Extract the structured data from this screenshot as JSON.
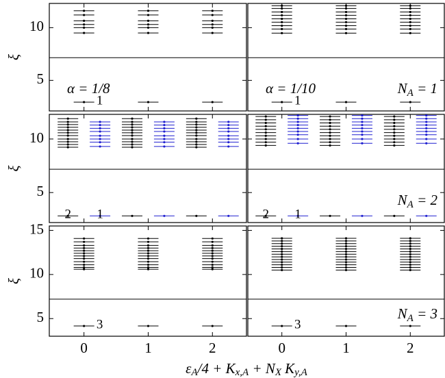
{
  "ylabel": "ξ",
  "xlabel": [
    {
      "t": "ε",
      "s": "A"
    },
    {
      "t": "/4 + K",
      "s": "x,A"
    },
    {
      "t": " + N",
      "s": "X"
    },
    {
      "t": "K",
      "s": "y,A"
    }
  ],
  "chart_data": [
    {
      "type": "spectrum",
      "label": "α = 1/8",
      "xlim": [
        -0.54,
        2.53
      ],
      "xticks": [
        0,
        1,
        2
      ],
      "ylim": [
        2.1,
        12.3
      ],
      "yticks": [
        5,
        10
      ],
      "cut": 7.15,
      "columns": [
        {
          "x": 0,
          "color": "#000000",
          "count": "1",
          "levels": [
            2.94,
            9.5,
            10.0,
            10.3,
            10.65,
            11.2,
            11.6
          ]
        },
        {
          "x": 1,
          "color": "#000000",
          "levels": [
            2.94,
            9.5,
            10.0,
            10.3,
            10.65,
            11.2,
            11.6
          ]
        },
        {
          "x": 2,
          "color": "#000000",
          "levels": [
            2.94,
            9.5,
            10.0,
            10.3,
            10.65,
            11.2,
            11.6
          ]
        }
      ]
    },
    {
      "type": "spectrum",
      "label": "α = 1/10",
      "na": {
        "base": "N",
        "sub": "A",
        "rest": " = 1"
      },
      "xlim": [
        -0.53,
        2.53
      ],
      "xticks": [
        0,
        1,
        2
      ],
      "ylim": [
        2.1,
        12.3
      ],
      "yticks": [
        5,
        10
      ],
      "cut": 7.15,
      "columns": [
        {
          "x": 0,
          "color": "#000000",
          "count": "1",
          "levels": [
            2.94,
            9.48,
            9.87,
            10.19,
            10.52,
            10.84,
            11.17,
            11.49,
            11.82,
            12.08
          ]
        },
        {
          "x": 1,
          "color": "#000000",
          "levels": [
            2.94,
            9.48,
            9.87,
            10.19,
            10.52,
            10.84,
            11.17,
            11.49,
            11.82,
            12.08
          ]
        },
        {
          "x": 2,
          "color": "#000000",
          "levels": [
            2.94,
            9.48,
            9.87,
            10.19,
            10.52,
            10.84,
            11.17,
            11.49,
            11.82,
            12.08
          ]
        }
      ]
    },
    {
      "type": "spectrum",
      "xlim": [
        -0.54,
        2.53
      ],
      "xticks": [
        0,
        1,
        2
      ],
      "ylim": [
        2.2,
        12.3
      ],
      "yticks": [
        5,
        10
      ],
      "cut": 7.18,
      "columns": [
        {
          "x": -0.25,
          "color": "#000000",
          "count": "2",
          "levels": [
            2.82,
            9.23,
            9.49,
            9.74,
            10.0,
            10.32,
            10.58,
            10.83,
            11.09,
            11.35,
            11.6,
            11.9
          ]
        },
        {
          "x": 0.25,
          "color": "#1f1fd0",
          "count": "1",
          "levels": [
            2.82,
            9.3,
            9.7,
            10.0,
            10.3,
            10.7,
            11.0,
            11.3,
            11.6
          ]
        },
        {
          "x": 0.75,
          "color": "#000000",
          "levels": [
            2.82,
            9.23,
            9.49,
            9.74,
            10.0,
            10.32,
            10.58,
            10.83,
            11.09,
            11.35,
            11.6,
            11.9
          ]
        },
        {
          "x": 1.25,
          "color": "#1f1fd0",
          "levels": [
            2.82,
            9.3,
            9.7,
            10.0,
            10.3,
            10.7,
            11.0,
            11.3,
            11.6
          ]
        },
        {
          "x": 1.75,
          "color": "#000000",
          "levels": [
            2.82,
            9.23,
            9.49,
            9.74,
            10.0,
            10.32,
            10.58,
            10.83,
            11.09,
            11.35,
            11.6,
            11.9
          ]
        },
        {
          "x": 2.25,
          "color": "#1f1fd0",
          "levels": [
            2.82,
            9.3,
            9.7,
            10.0,
            10.3,
            10.7,
            11.0,
            11.3,
            11.6
          ]
        }
      ]
    },
    {
      "type": "spectrum",
      "na": {
        "base": "N",
        "sub": "A",
        "rest": " = 2"
      },
      "xlim": [
        -0.53,
        2.53
      ],
      "xticks": [
        0,
        1,
        2
      ],
      "ylim": [
        2.2,
        12.3
      ],
      "yticks": [
        5,
        10
      ],
      "cut": 7.18,
      "columns": [
        {
          "x": -0.25,
          "color": "#000000",
          "count": "2",
          "levels": [
            2.82,
            9.4,
            9.7,
            10.0,
            10.3,
            10.6,
            10.9,
            11.2,
            11.5,
            11.8,
            12.1
          ]
        },
        {
          "x": 0.25,
          "color": "#1f1fd0",
          "count": "1",
          "levels": [
            2.82,
            9.6,
            10.0,
            10.4,
            10.7,
            11.0,
            11.3,
            11.6,
            11.9,
            12.2
          ]
        },
        {
          "x": 0.75,
          "color": "#000000",
          "levels": [
            2.82,
            9.4,
            9.7,
            10.0,
            10.3,
            10.6,
            10.9,
            11.2,
            11.5,
            11.8,
            12.1
          ]
        },
        {
          "x": 1.25,
          "color": "#1f1fd0",
          "levels": [
            2.82,
            9.6,
            10.0,
            10.4,
            10.7,
            11.0,
            11.3,
            11.6,
            11.9,
            12.2
          ]
        },
        {
          "x": 1.75,
          "color": "#000000",
          "levels": [
            2.82,
            9.4,
            9.7,
            10.0,
            10.3,
            10.6,
            10.9,
            11.2,
            11.5,
            11.8,
            12.1
          ]
        },
        {
          "x": 2.25,
          "color": "#1f1fd0",
          "levels": [
            2.82,
            9.6,
            10.0,
            10.4,
            10.7,
            11.0,
            11.3,
            11.6,
            11.9,
            12.2
          ]
        }
      ]
    },
    {
      "type": "spectrum",
      "xlim": [
        -0.54,
        2.53
      ],
      "xticks": [
        0,
        1,
        2
      ],
      "ylim": [
        3,
        15.5
      ],
      "yticks": [
        5,
        10,
        15
      ],
      "cut": 7.2,
      "columns": [
        {
          "x": 0,
          "color": "#000000",
          "count": "3",
          "levels": [
            4.16,
            10.6,
            10.8,
            11.1,
            11.45,
            11.8,
            12.1,
            12.4,
            12.7,
            13.0,
            13.3,
            13.7,
            14.08
          ]
        },
        {
          "x": 1,
          "color": "#000000",
          "levels": [
            4.16,
            10.6,
            10.8,
            11.1,
            11.45,
            11.8,
            12.1,
            12.4,
            12.7,
            13.0,
            13.3,
            13.7,
            14.08
          ]
        },
        {
          "x": 2,
          "color": "#000000",
          "levels": [
            4.16,
            10.6,
            10.8,
            11.1,
            11.45,
            11.8,
            12.1,
            12.4,
            12.7,
            13.0,
            13.3,
            13.7,
            14.08
          ]
        }
      ]
    },
    {
      "type": "spectrum",
      "na": {
        "base": "N",
        "sub": "A",
        "rest": " = 3"
      },
      "xlim": [
        -0.53,
        2.53
      ],
      "xticks": [
        0,
        1,
        2
      ],
      "ylim": [
        3,
        15.5
      ],
      "yticks": [
        5,
        10,
        15
      ],
      "cut": 7.2,
      "columns": [
        {
          "x": 0,
          "color": "#000000",
          "count": "3",
          "levels": [
            4.16,
            10.5,
            10.8,
            11.1,
            11.4,
            11.7,
            12.0,
            12.3,
            12.6,
            12.9,
            13.2,
            13.5,
            13.8,
            14.1
          ]
        },
        {
          "x": 1,
          "color": "#000000",
          "levels": [
            4.16,
            10.5,
            10.8,
            11.1,
            11.4,
            11.7,
            12.0,
            12.3,
            12.6,
            12.9,
            13.2,
            13.5,
            13.8,
            14.1
          ]
        },
        {
          "x": 2,
          "color": "#000000",
          "levels": [
            4.16,
            10.5,
            10.8,
            11.1,
            11.4,
            11.7,
            12.0,
            12.3,
            12.6,
            12.9,
            13.2,
            13.5,
            13.8,
            14.1
          ]
        }
      ]
    }
  ]
}
